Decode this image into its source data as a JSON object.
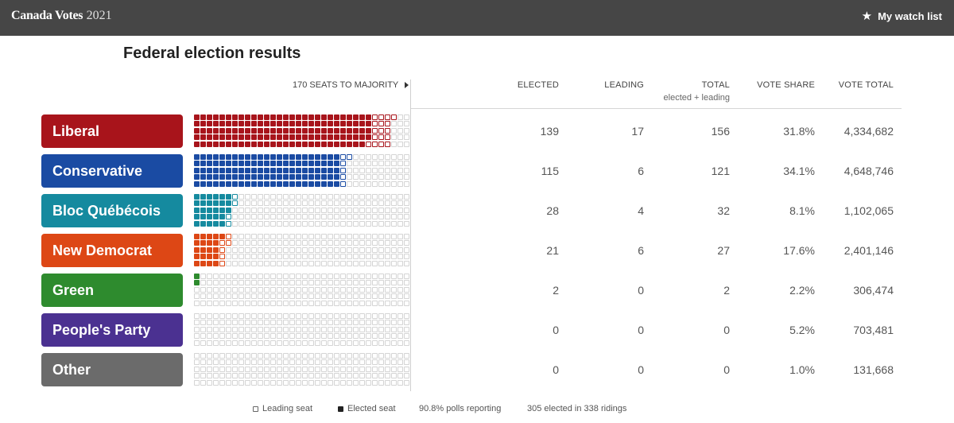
{
  "header": {
    "brand_main": "Canada Votes",
    "brand_year": "2021",
    "watch_label": "My watch list",
    "star_icon": "star-icon"
  },
  "title": "Federal election results",
  "majority_label": "170 SEATS TO MAJORITY",
  "columns": {
    "elected": "ELECTED",
    "leading": "LEADING",
    "total": "TOTAL",
    "total_sub": "elected + leading",
    "vote_share": "VOTE SHARE",
    "vote_total": "VOTE TOTAL"
  },
  "parties": [
    {
      "name": "Liberal",
      "color": "#a8141b",
      "elected": 139,
      "leading": 17,
      "elected_text": "139",
      "leading_text": "17",
      "total": "156",
      "vote_share": "31.8%",
      "vote_total": "4,334,682"
    },
    {
      "name": "Conservative",
      "color": "#1a4ba3",
      "elected": 115,
      "leading": 6,
      "elected_text": "115",
      "leading_text": "6",
      "total": "121",
      "vote_share": "34.1%",
      "vote_total": "4,648,746"
    },
    {
      "name": "Bloc Québécois",
      "color": "#158a9f",
      "elected": 28,
      "leading": 4,
      "elected_text": "28",
      "leading_text": "4",
      "total": "32",
      "vote_share": "8.1%",
      "vote_total": "1,102,065"
    },
    {
      "name": "New Democrat",
      "color": "#dd4715",
      "elected": 21,
      "leading": 6,
      "elected_text": "21",
      "leading_text": "6",
      "total": "27",
      "vote_share": "17.6%",
      "vote_total": "2,401,146"
    },
    {
      "name": "Green",
      "color": "#2e8b2e",
      "elected": 2,
      "leading": 0,
      "elected_text": "2",
      "leading_text": "0",
      "total": "2",
      "vote_share": "2.2%",
      "vote_total": "306,474"
    },
    {
      "name": "People's Party",
      "color": "#4b3191",
      "elected": 0,
      "leading": 0,
      "elected_text": "0",
      "leading_text": "0",
      "total": "0",
      "vote_share": "5.2%",
      "vote_total": "703,481"
    },
    {
      "name": "Other",
      "color": "#6b6b6b",
      "elected": 0,
      "leading": 0,
      "elected_text": "0",
      "leading_text": "0",
      "total": "0",
      "vote_share": "1.0%",
      "vote_total": "131,668"
    }
  ],
  "legend": {
    "leading": "Leading seat",
    "elected": "Elected seat",
    "polls": "90.8% polls reporting",
    "ridings": "305 elected in 338 ridings"
  }
}
